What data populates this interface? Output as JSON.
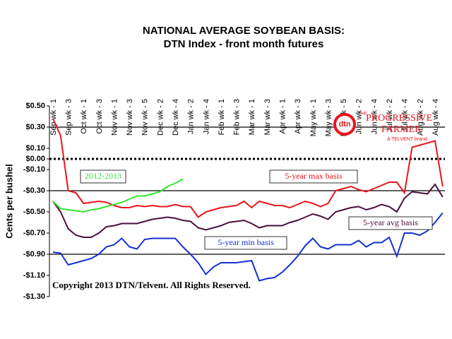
{
  "chart_data": {
    "type": "line",
    "title": "NATIONAL AVERAGE SOYBEAN BASIS:",
    "subtitle": "DTN Index - front month futures",
    "y_label": "Cents per bushel",
    "annotation": "Copyright 2013 DTN/Telvent. All Rights Reserved.",
    "logo": {
      "mark": "dtn",
      "name": "PROGRESSIVE",
      "name2": "FARMER",
      "tag": "A TELVENT brand",
      "the": "THE"
    },
    "categories": [
      "Sep wk - 1",
      null,
      "Sep wk - 3",
      null,
      "Oct wk - 1",
      null,
      "Oct wk - 3",
      null,
      "Nov wk - 1",
      null,
      "Nov wk - 3",
      null,
      "Nov wk - 5",
      null,
      "Dec wk - 2",
      null,
      "Dec wk - 4",
      null,
      "Jan wk - 2",
      null,
      "Jan wk - 4",
      null,
      "Feb wk - 1",
      null,
      "Feb wk - 3",
      null,
      "Mar wk - 1",
      null,
      "Mar wk - 3",
      null,
      "Apr wk - 1",
      null,
      "Apr wk - 3",
      null,
      "May wk - 1",
      null,
      "May wk - 3",
      null,
      "May wk - 5",
      null,
      "Jun wk - 2",
      null,
      "Jun wk - 4",
      null,
      "Jul wk - 2",
      null,
      "Jul wk - 4",
      null,
      "Aug wk - 2",
      null,
      "Aug wk - 4",
      null
    ],
    "series": [
      {
        "name": "5-year max basis",
        "color": "#e8141c",
        "values": [
          0.38,
          0.22,
          -0.3,
          -0.32,
          -0.42,
          -0.41,
          -0.4,
          -0.41,
          -0.44,
          -0.46,
          -0.46,
          -0.44,
          -0.45,
          -0.44,
          -0.45,
          -0.45,
          -0.43,
          -0.45,
          -0.45,
          -0.55,
          -0.5,
          -0.48,
          -0.46,
          -0.45,
          -0.44,
          -0.4,
          -0.46,
          -0.4,
          -0.42,
          -0.44,
          -0.44,
          -0.46,
          -0.43,
          -0.4,
          -0.42,
          -0.45,
          -0.42,
          -0.3,
          -0.28,
          -0.26,
          -0.29,
          -0.31,
          -0.28,
          -0.25,
          -0.22,
          -0.22,
          -0.32,
          0.11,
          0.13,
          0.15,
          0.17,
          -0.26
        ]
      },
      {
        "name": "5-year avg basis",
        "color": "#4b0f3c",
        "values": [
          -0.4,
          -0.5,
          -0.66,
          -0.72,
          -0.74,
          -0.74,
          -0.7,
          -0.64,
          -0.63,
          -0.61,
          -0.61,
          -0.61,
          -0.59,
          -0.57,
          -0.56,
          -0.55,
          -0.56,
          -0.58,
          -0.59,
          -0.65,
          -0.67,
          -0.65,
          -0.63,
          -0.6,
          -0.59,
          -0.58,
          -0.61,
          -0.65,
          -0.63,
          -0.63,
          -0.63,
          -0.6,
          -0.58,
          -0.55,
          -0.52,
          -0.54,
          -0.57,
          -0.5,
          -0.48,
          -0.46,
          -0.45,
          -0.48,
          -0.46,
          -0.43,
          -0.45,
          -0.5,
          -0.37,
          -0.31,
          -0.32,
          -0.33,
          -0.24,
          -0.36
        ]
      },
      {
        "name": "5-year min basis",
        "color": "#1432d2",
        "values": [
          -0.88,
          -0.89,
          -1.0,
          -0.98,
          -0.96,
          -0.94,
          -0.9,
          -0.83,
          -0.81,
          -0.75,
          -0.83,
          -0.85,
          -0.76,
          -0.75,
          -0.75,
          -0.75,
          -0.75,
          -0.83,
          -0.9,
          -0.98,
          -1.09,
          -1.02,
          -0.98,
          -0.98,
          -0.98,
          -0.97,
          -0.96,
          -1.15,
          -1.13,
          -1.12,
          -1.07,
          -1.0,
          -0.92,
          -0.82,
          -0.75,
          -0.83,
          -0.85,
          -0.81,
          -0.81,
          -0.81,
          -0.77,
          -0.83,
          -0.79,
          -0.79,
          -0.74,
          -0.92,
          -0.7,
          -0.7,
          -0.72,
          -0.68,
          -0.6,
          -0.51
        ]
      },
      {
        "name": "2012-2013",
        "color": "#33e633",
        "values": [
          -0.4,
          -0.47,
          -0.48,
          -0.49,
          -0.5,
          -0.48,
          -0.47,
          -0.45,
          -0.43,
          -0.41,
          -0.38,
          -0.35,
          -0.35,
          -0.33,
          -0.31,
          -0.26,
          -0.23,
          -0.19,
          null,
          null,
          null,
          null,
          null,
          null,
          null,
          null,
          null,
          null,
          null,
          null,
          null,
          null,
          null,
          null,
          null,
          null,
          null,
          null,
          null,
          null,
          null,
          null,
          null,
          null,
          null,
          null,
          null,
          null,
          null,
          null,
          null,
          null
        ]
      }
    ],
    "ylim": [
      -1.3,
      0.5
    ],
    "yticks": [
      {
        "value": 0.5,
        "label": "$0.50"
      },
      {
        "value": 0.3,
        "label": "$0.30"
      },
      {
        "value": 0.1,
        "label": "$0.10"
      },
      {
        "value": 0,
        "label": "$0.00"
      },
      {
        "value": -0.1,
        "label": "-$0.10"
      },
      {
        "value": -0.3,
        "label": "-$0.30"
      },
      {
        "value": -0.5,
        "label": "-$0.50"
      },
      {
        "value": -0.7,
        "label": "-$0.70"
      },
      {
        "value": -0.9,
        "label": "-$0.90"
      },
      {
        "value": -1.1,
        "label": "-$1.10"
      },
      {
        "value": -1.3,
        "label": "-$1.30"
      }
    ],
    "grid_lines": [
      0.3,
      -0.3,
      -0.9
    ],
    "reference_line": 0
  }
}
